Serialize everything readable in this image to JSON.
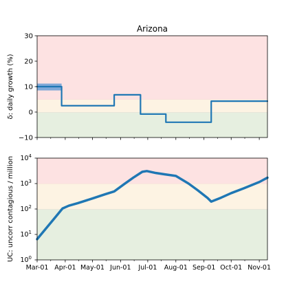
{
  "chart_data": [
    {
      "type": "line",
      "title": "Arizona",
      "ylabel": "δ: daily growth (%)",
      "xlabel": "",
      "ylim": [
        -10,
        30
      ],
      "yticks": [
        -10,
        0,
        10,
        20,
        30
      ],
      "ytick_labels": [
        "−10",
        "0",
        "10",
        "20",
        "30"
      ],
      "x_range": [
        "2020-03-01",
        "2020-11-10"
      ],
      "grid": false,
      "zones": [
        {
          "from": -10,
          "to": 0,
          "color": "#e6efe0"
        },
        {
          "from": 0,
          "to": 5,
          "color": "#fdf3e3"
        },
        {
          "from": 5,
          "to": 30,
          "color": "#fde2e2"
        }
      ],
      "series": [
        {
          "color": "#1f77b4",
          "kind": "step",
          "x": [
            "2020-03-01",
            "2020-03-28",
            "2020-03-28",
            "2020-05-25",
            "2020-05-25",
            "2020-06-23",
            "2020-06-23",
            "2020-07-21",
            "2020-07-21",
            "2020-09-09",
            "2020-09-09",
            "2020-11-10"
          ],
          "y": [
            10,
            10,
            2.5,
            2.5,
            6.8,
            6.8,
            -0.8,
            -0.8,
            -4,
            -4,
            4.3,
            4.3
          ]
        }
      ],
      "bands": [
        {
          "color": "#6a9fd6",
          "x": [
            "2020-03-01",
            "2020-03-28"
          ],
          "low": 8.5,
          "high": 11.2
        }
      ]
    },
    {
      "type": "line",
      "title": "",
      "ylabel": "UC: uncorr contagious / million",
      "xlabel": "",
      "yscale": "log",
      "ylim": [
        1,
        10000
      ],
      "yticks": [
        1,
        10,
        100,
        1000,
        10000
      ],
      "ytick_labels": [
        [
          "10",
          "0"
        ],
        [
          "10",
          "1"
        ],
        [
          "10",
          "2"
        ],
        [
          "10",
          "3"
        ],
        [
          "10",
          "4"
        ]
      ],
      "x_range": [
        "2020-03-01",
        "2020-11-10"
      ],
      "xtick_labels": [
        "Mar-01",
        "Apr-01",
        "May-01",
        "Jun-01",
        "Jul-01",
        "Aug-01",
        "Sep-01",
        "Oct-01",
        "Nov-01"
      ],
      "xticks": [
        "2020-03-01",
        "2020-04-01",
        "2020-05-01",
        "2020-06-01",
        "2020-07-01",
        "2020-08-01",
        "2020-09-01",
        "2020-10-01",
        "2020-11-01"
      ],
      "grid": false,
      "zones": [
        {
          "from": 1,
          "to": 100,
          "color": "#e6efe0"
        },
        {
          "from": 100,
          "to": 1000,
          "color": "#fdf3e3"
        },
        {
          "from": 1000,
          "to": 10000,
          "color": "#fde2e2"
        }
      ],
      "series": [
        {
          "color": "#1f77b4",
          "x": [
            "2020-03-01",
            "2020-03-08",
            "2020-03-15",
            "2020-03-22",
            "2020-03-29",
            "2020-04-05",
            "2020-04-15",
            "2020-05-01",
            "2020-05-15",
            "2020-05-25",
            "2020-06-05",
            "2020-06-15",
            "2020-06-25",
            "2020-06-30",
            "2020-07-10",
            "2020-07-20",
            "2020-08-01",
            "2020-08-15",
            "2020-08-25",
            "2020-09-05",
            "2020-09-09",
            "2020-09-20",
            "2020-10-01",
            "2020-10-15",
            "2020-11-01",
            "2020-11-10"
          ],
          "y": [
            6.5,
            13,
            26,
            52,
            105,
            135,
            170,
            260,
            380,
            490,
            950,
            1700,
            2900,
            3100,
            2600,
            2300,
            2000,
            1000,
            550,
            270,
            195,
            280,
            420,
            650,
            1150,
            1700
          ]
        }
      ]
    }
  ]
}
